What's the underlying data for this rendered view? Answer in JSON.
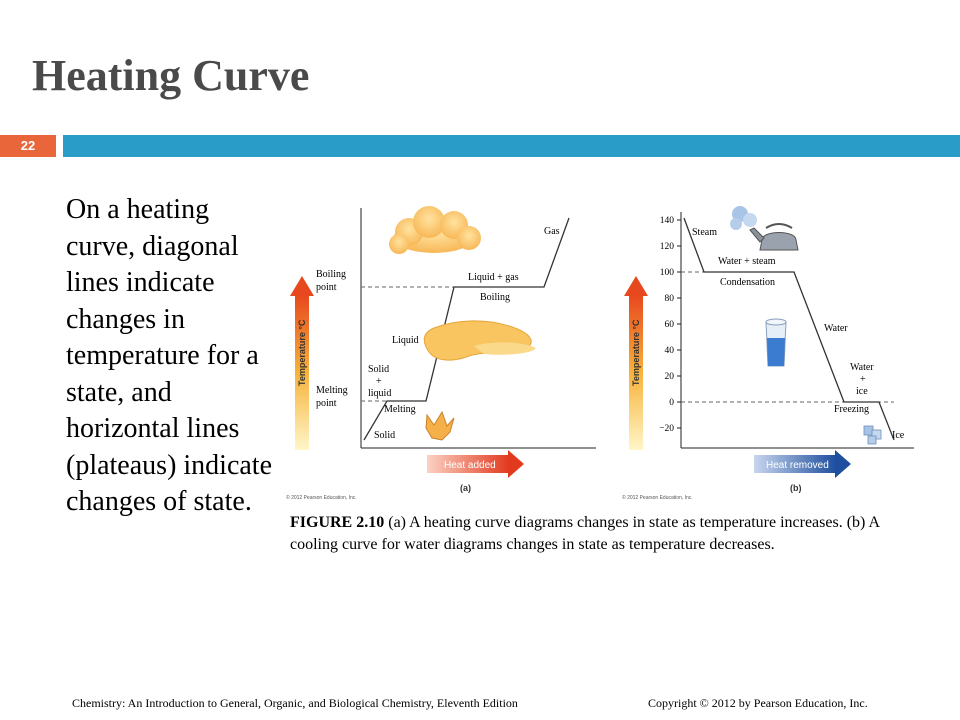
{
  "slide": {
    "title": "Heating Curve",
    "number": "22",
    "body_text": "On a heating curve, diagonal lines indicate changes in temperature for a state, and horizontal lines (plateaus) indicate changes of state."
  },
  "figure": {
    "panel_a": {
      "label": "(a)",
      "arrow_label": "Heat added",
      "axis_label": "Temperature °C",
      "labels": {
        "gas": "Gas",
        "liquid_gas": "Liquid + gas",
        "boiling": "Boiling",
        "liquid": "Liquid",
        "solid_liquid_1": "Solid",
        "solid_liquid_2": "+",
        "solid_liquid_3": "liquid",
        "melting": "Melting",
        "solid": "Solid",
        "boiling_point_1": "Boiling",
        "boiling_point_2": "point",
        "melting_point_1": "Melting",
        "melting_point_2": "point"
      },
      "copyright": "© 2012 Pearson Education, Inc."
    },
    "panel_b": {
      "label": "(b)",
      "arrow_label": "Heat removed",
      "axis_label": "Temperature °C",
      "ticks": [
        "140",
        "120",
        "100",
        "80",
        "60",
        "40",
        "20",
        "0",
        "−20"
      ],
      "labels": {
        "steam": "Steam",
        "water_steam": "Water + steam",
        "condensation": "Condensation",
        "water": "Water",
        "water_ice_1": "Water",
        "water_ice_2": "+",
        "water_ice_3": "ice",
        "freezing": "Freezing",
        "ice": "Ice"
      },
      "copyright": "© 2012 Pearson Education, Inc."
    },
    "caption_bold": "FIGURE 2.10",
    "caption_text": " (a) A heating curve diagrams changes in state as temperature increases. (b) A cooling curve for water diagrams changes in state as temperature decreases."
  },
  "footer": {
    "left": "Chemistry: An Introduction to General, Organic, and Biological Chemistry, Eleventh Edition",
    "right": "Copyright © 2012 by Pearson Education, Inc."
  }
}
